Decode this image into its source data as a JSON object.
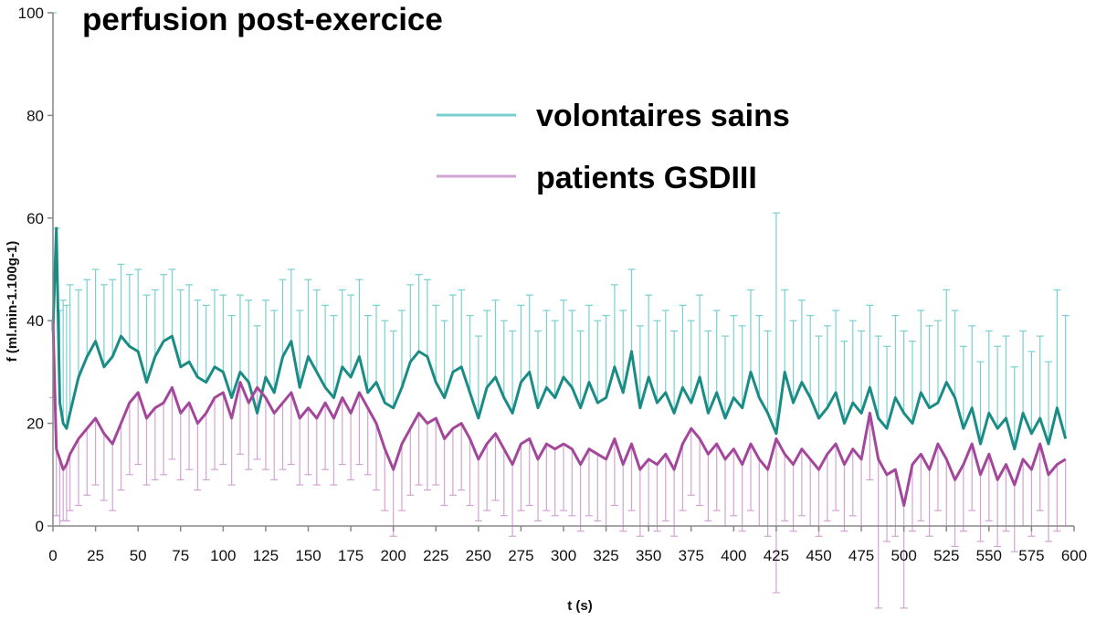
{
  "chart_data": {
    "type": "line",
    "title": "perfusion post-exercice",
    "xlabel": "t (s)",
    "ylabel": "f (ml.min-1.100g-1)",
    "xlim": [
      0,
      600
    ],
    "ylim": [
      0,
      100
    ],
    "x_ticks": [
      "0",
      "25",
      "50",
      "75",
      "100",
      "125",
      "150",
      "175",
      "200",
      "225",
      "250",
      "275",
      "300",
      "325",
      "350",
      "375",
      "400",
      "425",
      "450",
      "475",
      "500",
      "525",
      "550",
      "575",
      "600"
    ],
    "y_ticks": [
      "0",
      "20",
      "40",
      "60",
      "80",
      "100"
    ],
    "grid": false,
    "legend_position": "top-right",
    "series": [
      {
        "name": "volontaires sains",
        "color": "#1a8c85",
        "error_color": "#79cfcf",
        "x": [
          0,
          2,
          4,
          6,
          8,
          10,
          15,
          20,
          25,
          30,
          35,
          40,
          45,
          50,
          55,
          60,
          65,
          70,
          75,
          80,
          85,
          90,
          95,
          100,
          105,
          110,
          115,
          120,
          125,
          130,
          135,
          140,
          145,
          150,
          155,
          160,
          165,
          170,
          175,
          180,
          185,
          190,
          195,
          200,
          205,
          210,
          215,
          220,
          225,
          230,
          235,
          240,
          245,
          250,
          255,
          260,
          265,
          270,
          275,
          280,
          285,
          290,
          295,
          300,
          305,
          310,
          315,
          320,
          325,
          330,
          335,
          340,
          345,
          350,
          355,
          360,
          365,
          370,
          375,
          380,
          385,
          390,
          395,
          400,
          405,
          410,
          415,
          420,
          425,
          430,
          435,
          440,
          445,
          450,
          455,
          460,
          465,
          470,
          475,
          480,
          485,
          490,
          495,
          500,
          505,
          510,
          515,
          520,
          525,
          530,
          535,
          540,
          545,
          550,
          555,
          560,
          565,
          570,
          575,
          580,
          585,
          590,
          595
        ],
        "values": [
          38,
          58,
          24,
          20,
          19,
          22,
          29,
          33,
          36,
          31,
          33,
          37,
          35,
          34,
          28,
          33,
          36,
          37,
          31,
          32,
          29,
          28,
          31,
          30,
          25,
          30,
          28,
          22,
          29,
          26,
          33,
          36,
          27,
          33,
          30,
          27,
          25,
          31,
          29,
          33,
          26,
          28,
          24,
          23,
          27,
          32,
          34,
          33,
          28,
          25,
          30,
          31,
          26,
          21,
          27,
          29,
          25,
          22,
          28,
          30,
          23,
          27,
          25,
          29,
          27,
          23,
          28,
          24,
          25,
          31,
          26,
          34,
          23,
          29,
          24,
          26,
          22,
          27,
          24,
          29,
          22,
          26,
          21,
          25,
          23,
          30,
          25,
          22,
          18,
          30,
          24,
          28,
          25,
          21,
          23,
          26,
          20,
          24,
          22,
          27,
          21,
          19,
          25,
          22,
          20,
          26,
          23,
          24,
          28,
          25,
          19,
          23,
          16,
          22,
          19,
          21,
          15,
          22,
          18,
          21,
          16,
          23,
          17
        ],
        "error_upper": [
          100,
          58,
          42,
          44,
          43,
          47,
          46,
          48,
          50,
          47,
          48,
          51,
          49,
          50,
          45,
          46,
          49,
          50,
          46,
          47,
          44,
          43,
          46,
          45,
          41,
          45,
          44,
          39,
          44,
          42,
          48,
          50,
          42,
          48,
          46,
          43,
          41,
          46,
          45,
          48,
          41,
          43,
          40,
          38,
          42,
          47,
          49,
          48,
          43,
          40,
          45,
          46,
          41,
          37,
          42,
          44,
          40,
          38,
          43,
          45,
          38,
          42,
          40,
          44,
          42,
          38,
          43,
          40,
          41,
          47,
          42,
          50,
          39,
          45,
          40,
          42,
          38,
          43,
          40,
          45,
          38,
          42,
          37,
          41,
          39,
          46,
          41,
          38,
          61,
          46,
          40,
          44,
          41,
          37,
          39,
          42,
          36,
          40,
          38,
          43,
          37,
          35,
          41,
          38,
          36,
          42,
          39,
          40,
          46,
          42,
          35,
          39,
          32,
          38,
          35,
          37,
          31,
          38,
          34,
          37,
          32,
          46,
          41
        ]
      },
      {
        "name": "patients GSDIII",
        "color": "#a3479b",
        "error_color": "#d3a3d3",
        "x": [
          0,
          2,
          4,
          6,
          8,
          10,
          15,
          20,
          25,
          30,
          35,
          40,
          45,
          50,
          55,
          60,
          65,
          70,
          75,
          80,
          85,
          90,
          95,
          100,
          105,
          110,
          115,
          120,
          125,
          130,
          135,
          140,
          145,
          150,
          155,
          160,
          165,
          170,
          175,
          180,
          185,
          190,
          195,
          200,
          205,
          210,
          215,
          220,
          225,
          230,
          235,
          240,
          245,
          250,
          255,
          260,
          265,
          270,
          275,
          280,
          285,
          290,
          295,
          300,
          305,
          310,
          315,
          320,
          325,
          330,
          335,
          340,
          345,
          350,
          355,
          360,
          365,
          370,
          375,
          380,
          385,
          390,
          395,
          400,
          405,
          410,
          415,
          420,
          425,
          430,
          435,
          440,
          445,
          450,
          455,
          460,
          465,
          470,
          475,
          480,
          485,
          490,
          495,
          500,
          505,
          510,
          515,
          520,
          525,
          530,
          535,
          540,
          545,
          550,
          555,
          560,
          565,
          570,
          575,
          580,
          585,
          590,
          595
        ],
        "values": [
          40,
          15,
          13,
          11,
          12,
          14,
          17,
          19,
          21,
          18,
          16,
          20,
          24,
          26,
          21,
          23,
          24,
          27,
          22,
          24,
          20,
          22,
          25,
          26,
          21,
          28,
          24,
          27,
          25,
          22,
          24,
          26,
          21,
          23,
          21,
          24,
          21,
          25,
          22,
          26,
          23,
          20,
          15,
          11,
          16,
          19,
          22,
          20,
          21,
          17,
          19,
          20,
          17,
          13,
          16,
          18,
          15,
          12,
          16,
          17,
          13,
          16,
          15,
          16,
          15,
          12,
          15,
          14,
          13,
          17,
          12,
          16,
          11,
          13,
          12,
          14,
          11,
          16,
          19,
          17,
          14,
          16,
          13,
          15,
          12,
          16,
          13,
          11,
          17,
          14,
          12,
          15,
          13,
          11,
          14,
          16,
          12,
          15,
          13,
          22,
          13,
          10,
          11,
          4,
          12,
          14,
          11,
          16,
          13,
          9,
          12,
          16,
          10,
          14,
          9,
          12,
          8,
          13,
          11,
          16,
          10,
          12,
          13
        ],
        "error_lower": [
          25,
          2,
          0,
          1,
          1,
          3,
          4,
          6,
          8,
          5,
          3,
          7,
          10,
          12,
          8,
          9,
          10,
          13,
          9,
          11,
          7,
          9,
          11,
          12,
          8,
          14,
          11,
          13,
          11,
          9,
          11,
          12,
          8,
          10,
          8,
          11,
          8,
          12,
          9,
          12,
          10,
          7,
          3,
          -2,
          3,
          6,
          8,
          7,
          8,
          4,
          6,
          7,
          4,
          1,
          3,
          5,
          2,
          -2,
          3,
          4,
          1,
          3,
          2,
          3,
          2,
          -1,
          2,
          1,
          0,
          4,
          -1,
          3,
          -2,
          0,
          -1,
          1,
          -2,
          3,
          6,
          4,
          1,
          3,
          0,
          2,
          -1,
          3,
          0,
          -2,
          -13,
          1,
          -1,
          2,
          0,
          -2,
          1,
          3,
          -1,
          2,
          0,
          9,
          -16,
          -3,
          -2,
          -16,
          -1,
          1,
          -2,
          3,
          0,
          -4,
          -1,
          3,
          -3,
          1,
          -4,
          -1,
          -5,
          0,
          -2,
          3,
          -3,
          -1,
          0
        ]
      }
    ]
  }
}
